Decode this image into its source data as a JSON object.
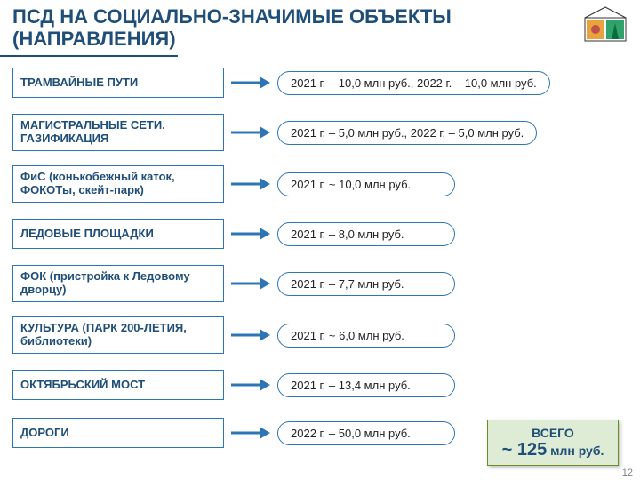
{
  "title": "ПСД НА СОЦИАЛЬНО-ЗНАЧИМЫЕ ОБЪЕКТЫ (НАПРАВЛЕНИЯ)",
  "colors": {
    "heading": "#1f4e79",
    "box_border": "#2e75b6",
    "arrow": "#2e75b6",
    "total_bg": "#deebd5",
    "total_border": "#6b8e23"
  },
  "rows": [
    {
      "label": "ТРАМВАЙНЫЕ ПУТИ",
      "value": "2021 г. – 10,0 млн руб., 2022 г. – 10,0 млн руб.",
      "two_line": false
    },
    {
      "label": "МАГИСТРАЛЬНЫЕ СЕТИ. ГАЗИФИКАЦИЯ",
      "value": "2021 г. – 5,0 млн руб., 2022 г. – 5,0 млн руб.",
      "two_line": true
    },
    {
      "label": "ФиС (конькобежный каток, ФОКОТы, скейт-парк)",
      "value": "2021 г. ~ 10,0 млн руб.",
      "two_line": true
    },
    {
      "label": "ЛЕДОВЫЕ ПЛОЩАДКИ",
      "value": "2021 г. – 8,0 млн руб.",
      "two_line": false
    },
    {
      "label": "ФОК (пристройка к Ледовому дворцу)",
      "value": "2021 г. – 7,7 млн руб.",
      "two_line": true
    },
    {
      "label": "КУЛЬТУРА (ПАРК 200-ЛЕТИЯ, библиотеки)",
      "value": "2021 г. ~ 6,0 млн руб.",
      "two_line": true
    },
    {
      "label": "ОКТЯБРЬСКИЙ МОСТ",
      "value": "2021 г. – 13,4 млн руб.",
      "two_line": false
    },
    {
      "label": "ДОРОГИ",
      "value": "2022 г. – 50,0 млн руб.",
      "two_line": false
    }
  ],
  "total": {
    "label": "ВСЕГО",
    "amount": "~ 125",
    "unit": "млн руб."
  },
  "page_number": "12"
}
